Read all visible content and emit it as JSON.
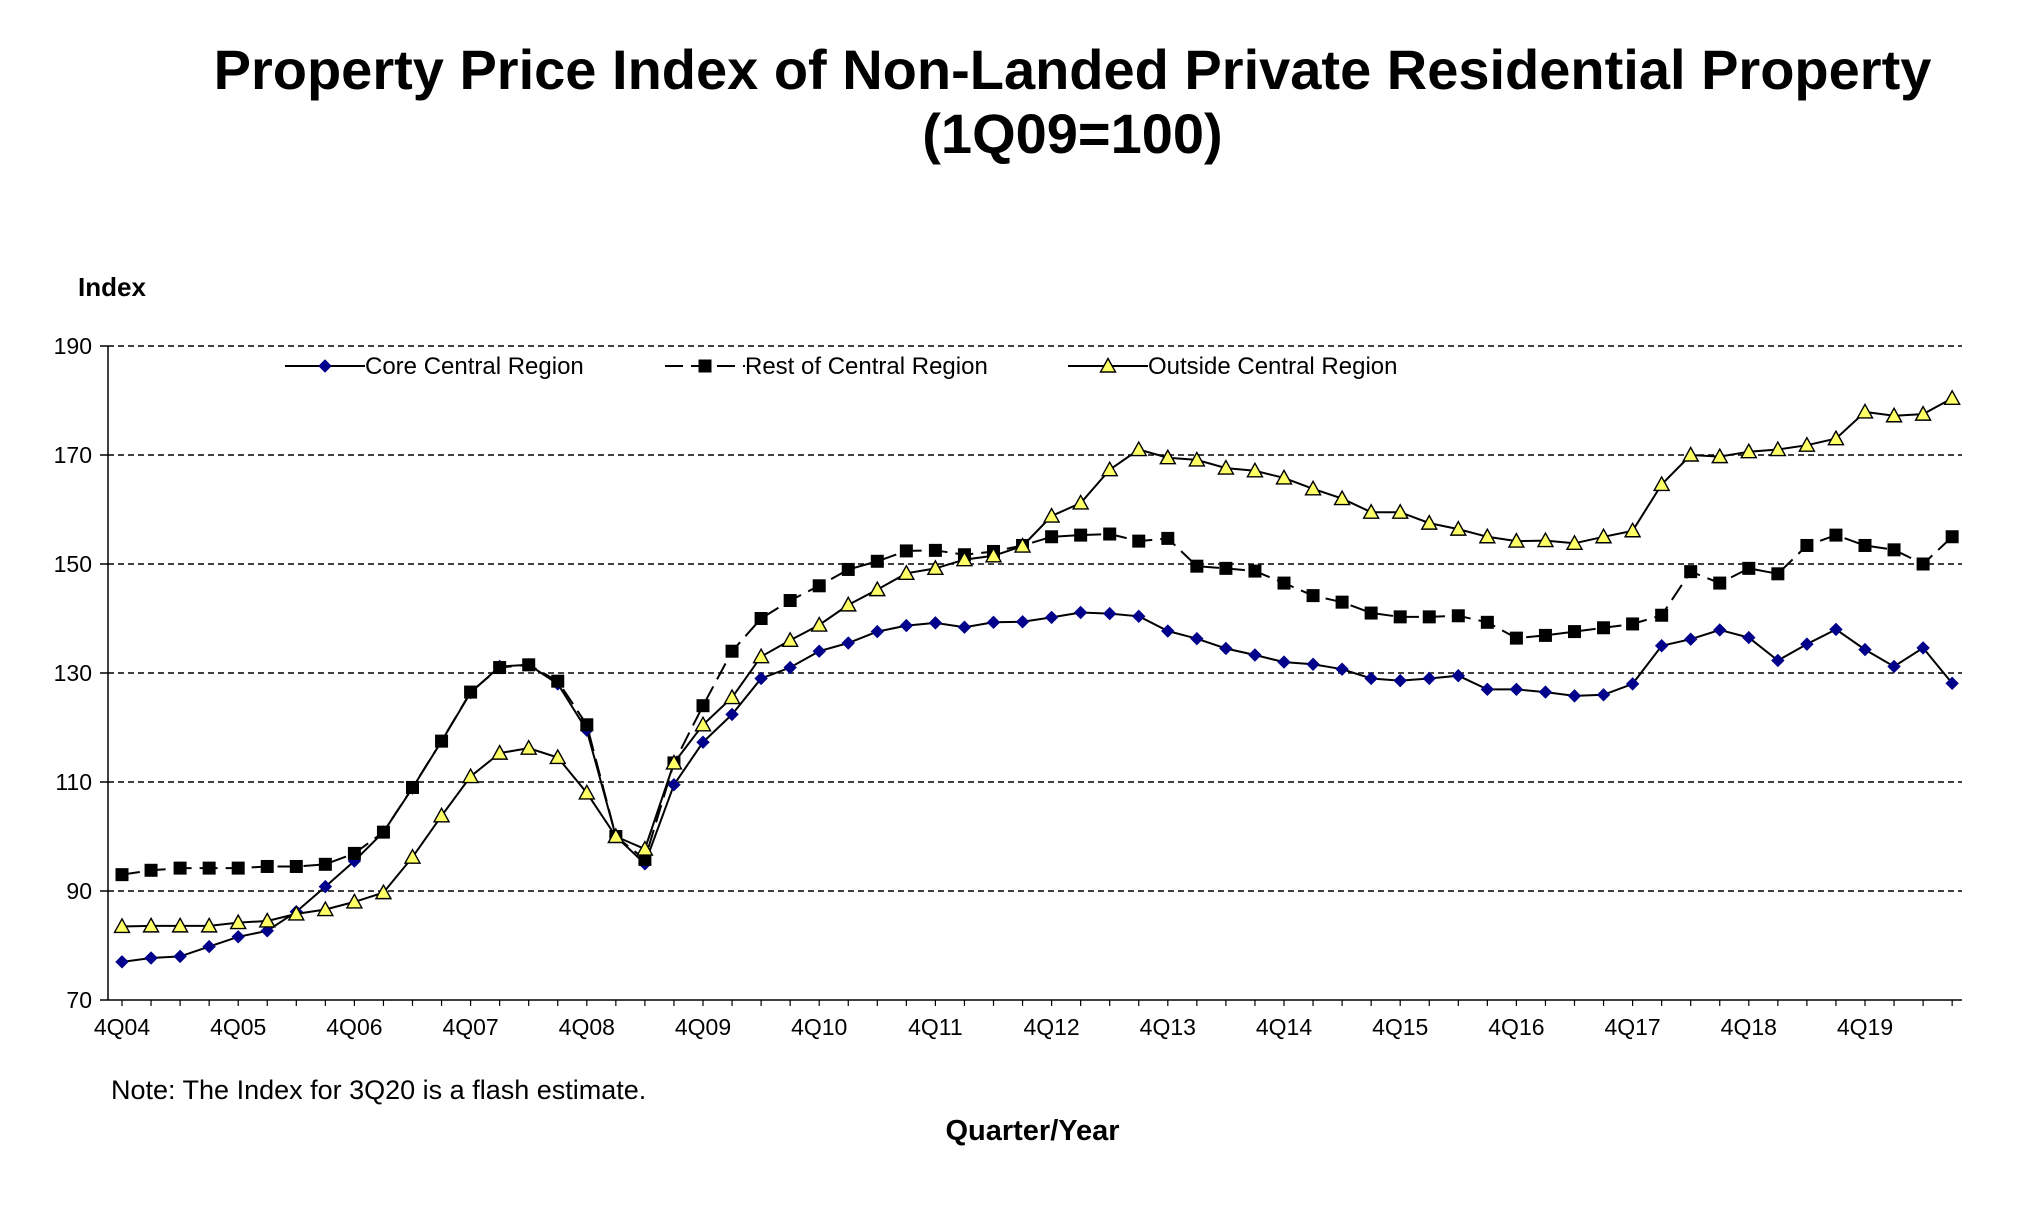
{
  "chart_data": {
    "type": "line",
    "title": "Property Price Index of Non-Landed Private Residential Property",
    "subtitle": "(1Q09=100)",
    "ylabel": "Index",
    "xlabel": "Quarter/Year",
    "note": "Note: The Index for 3Q20 is a flash estimate.",
    "ylim": [
      70,
      190
    ],
    "yticks": [
      70,
      90,
      110,
      130,
      150,
      170,
      190
    ],
    "xtick_labels": [
      "4Q04",
      "4Q05",
      "4Q06",
      "4Q07",
      "4Q08",
      "4Q09",
      "4Q10",
      "4Q11",
      "4Q12",
      "4Q13",
      "4Q14",
      "4Q15",
      "4Q16",
      "4Q17",
      "4Q18",
      "4Q19"
    ],
    "quarters": [
      "4Q04",
      "1Q05",
      "2Q05",
      "3Q05",
      "4Q05",
      "1Q06",
      "2Q06",
      "3Q06",
      "4Q06",
      "1Q07",
      "2Q07",
      "3Q07",
      "4Q07",
      "1Q08",
      "2Q08",
      "3Q08",
      "4Q08",
      "1Q09",
      "2Q09",
      "3Q09",
      "4Q09",
      "1Q10",
      "2Q10",
      "3Q10",
      "4Q10",
      "1Q11",
      "2Q11",
      "3Q11",
      "4Q11",
      "1Q12",
      "2Q12",
      "3Q12",
      "4Q12",
      "1Q13",
      "2Q13",
      "3Q13",
      "4Q13",
      "1Q14",
      "2Q14",
      "3Q14",
      "4Q14",
      "1Q15",
      "2Q15",
      "3Q15",
      "4Q15",
      "1Q16",
      "2Q16",
      "3Q16",
      "4Q16",
      "1Q17",
      "2Q17",
      "3Q17",
      "4Q17",
      "1Q18",
      "2Q18",
      "3Q18",
      "4Q18",
      "1Q19",
      "2Q19",
      "3Q19",
      "4Q19",
      "1Q20",
      "2Q20",
      "3Q20"
    ],
    "legend_position": "top",
    "grid": true,
    "series": [
      {
        "name": "Core Central Region",
        "color": "#00008b",
        "line_style": "solid",
        "marker": "diamond",
        "values": [
          77.0,
          77.7,
          78.0,
          79.8,
          81.6,
          82.7,
          86.2,
          90.8,
          95.5,
          100.8,
          108.9,
          117.5,
          126.4,
          131.2,
          131.5,
          128.0,
          119.5,
          100.0,
          95.0,
          109.5,
          117.3,
          122.4,
          129.0,
          131.0,
          134.0,
          135.5,
          137.6,
          138.7,
          139.2,
          138.4,
          139.3,
          139.4,
          140.2,
          141.1,
          140.9,
          140.4,
          137.7,
          136.3,
          134.5,
          133.3,
          132.0,
          131.6,
          130.7,
          129.0,
          128.6,
          129.0,
          129.5,
          127.0,
          127.0,
          126.5,
          125.8,
          126.0,
          128.0,
          135.0,
          136.2,
          137.9,
          136.5,
          132.3,
          135.3,
          138.0,
          134.3,
          131.2,
          134.6,
          128.1
        ]
      },
      {
        "name": "Rest of Central Region",
        "color": "#000000",
        "line_style": "dashed",
        "marker": "square",
        "values": [
          93.0,
          93.8,
          94.2,
          94.2,
          94.2,
          94.5,
          94.5,
          94.9,
          96.9,
          100.8,
          109.0,
          117.5,
          126.5,
          131.0,
          131.5,
          128.5,
          120.5,
          100.0,
          95.8,
          113.5,
          124.0,
          134.0,
          140.0,
          143.3,
          146.0,
          149.0,
          150.5,
          152.4,
          152.5,
          151.7,
          152.3,
          153.4,
          155.0,
          155.3,
          155.5,
          154.2,
          154.7,
          149.6,
          149.2,
          148.7,
          146.5,
          144.2,
          143.0,
          141.0,
          140.3,
          140.3,
          140.5,
          139.3,
          136.4,
          136.9,
          137.6,
          138.3,
          139.0,
          140.6,
          148.6,
          146.5,
          149.2,
          148.2,
          153.4,
          155.3,
          153.4,
          152.6,
          150.0,
          155.0
        ]
      },
      {
        "name": "Outside Central Region",
        "color": "#000000",
        "fill": "#ffff66",
        "line_style": "solid",
        "marker": "triangle",
        "values": [
          83.5,
          83.6,
          83.6,
          83.6,
          84.2,
          84.5,
          85.8,
          86.6,
          88.0,
          89.7,
          96.2,
          103.8,
          111.0,
          115.3,
          116.2,
          114.5,
          108.0,
          100.0,
          97.7,
          113.5,
          120.5,
          125.5,
          133.0,
          136.0,
          138.8,
          142.5,
          145.3,
          148.3,
          149.2,
          150.8,
          151.5,
          153.3,
          158.8,
          161.2,
          167.3,
          171.0,
          169.5,
          169.1,
          167.6,
          167.1,
          165.8,
          163.8,
          162.0,
          159.5,
          159.5,
          157.5,
          156.4,
          155.0,
          154.2,
          154.3,
          153.8,
          155.0,
          156.1,
          164.6,
          170.0,
          169.7,
          170.6,
          171.0,
          171.8,
          173.0,
          177.9,
          177.2,
          177.5,
          180.4
        ]
      }
    ]
  }
}
